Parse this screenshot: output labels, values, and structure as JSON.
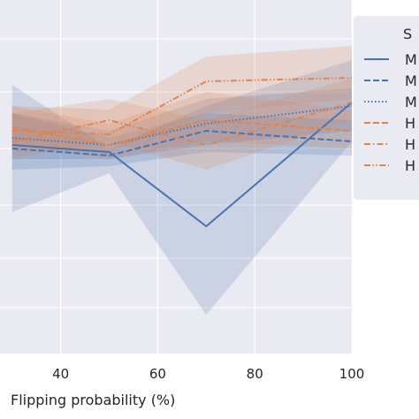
{
  "chart_data": {
    "type": "line",
    "xlabel": "Flipping probability (%)",
    "ylabel": "",
    "xticks": [
      "40",
      "60",
      "80",
      "100"
    ],
    "xlim": [
      27.5,
      100
    ],
    "ylim": [
      0,
      1
    ],
    "grid": true,
    "background": "#eaeaf2",
    "legend": {
      "placement": "right (clipped)",
      "title": "S",
      "labels": [
        "M",
        "M",
        "M",
        "H",
        "H",
        "H"
      ]
    },
    "x": [
      30,
      50,
      70,
      100
    ],
    "series": [
      {
        "color": "#4c72b0",
        "dash": "solid",
        "values": [
          0.59,
          0.57,
          0.36,
          0.71
        ],
        "lower": [
          0.4,
          0.51,
          0.11,
          0.6
        ],
        "upper": [
          0.76,
          0.58,
          0.7,
          0.83
        ]
      },
      {
        "color": "#4c72b0",
        "dash": "dashed",
        "values": [
          0.58,
          0.56,
          0.63,
          0.6
        ],
        "lower": [
          0.52,
          0.53,
          0.57,
          0.56
        ],
        "upper": [
          0.68,
          0.61,
          0.68,
          0.66
        ]
      },
      {
        "color": "#4c72b0",
        "dotted": true,
        "dash": "dotted",
        "values": [
          0.61,
          0.59,
          0.65,
          0.7
        ],
        "lower": [
          0.55,
          0.55,
          0.59,
          0.63
        ],
        "upper": [
          0.68,
          0.63,
          0.72,
          0.75
        ]
      },
      {
        "color": "#dd8452",
        "dash": "dashed",
        "values": [
          0.64,
          0.59,
          0.66,
          0.63
        ],
        "lower": [
          0.59,
          0.55,
          0.6,
          0.58
        ],
        "upper": [
          0.7,
          0.65,
          0.74,
          0.69
        ]
      },
      {
        "color": "#dd8452",
        "dash": "dashdot",
        "values": [
          0.6,
          0.66,
          0.59,
          0.71
        ],
        "lower": [
          0.55,
          0.6,
          0.52,
          0.66
        ],
        "upper": [
          0.68,
          0.72,
          0.66,
          0.78
        ]
      },
      {
        "color": "#dd8452",
        "dash": "dashdotdot",
        "values": [
          0.63,
          0.62,
          0.77,
          0.78
        ],
        "lower": [
          0.57,
          0.57,
          0.68,
          0.72
        ],
        "upper": [
          0.7,
          0.69,
          0.84,
          0.87
        ]
      }
    ]
  }
}
